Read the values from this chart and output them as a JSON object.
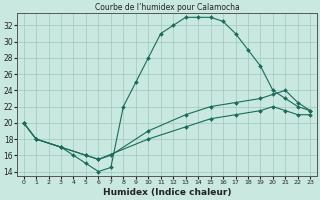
{
  "title": "Courbe de l’humidex pour Calamocha",
  "xlabel": "Humidex (Indice chaleur)",
  "xlim": [
    -0.5,
    23.5
  ],
  "ylim": [
    13.5,
    33.5
  ],
  "yticks": [
    14,
    16,
    18,
    20,
    22,
    24,
    26,
    28,
    30,
    32
  ],
  "xticks": [
    0,
    1,
    2,
    3,
    4,
    5,
    6,
    7,
    8,
    9,
    10,
    11,
    12,
    13,
    14,
    15,
    16,
    17,
    18,
    19,
    20,
    21,
    22,
    23
  ],
  "bg_color": "#c8e8e0",
  "line_color": "#1a6b5a",
  "grid_color": "#a0c8c0",
  "curves": [
    {
      "x": [
        0,
        1,
        3,
        4,
        5,
        6,
        7,
        8,
        9,
        10,
        11,
        12,
        13,
        14,
        15,
        16,
        17,
        18,
        19,
        20,
        21,
        22,
        23
      ],
      "y": [
        20,
        18,
        17,
        16,
        15,
        14,
        14.5,
        22,
        25,
        28,
        31,
        32,
        33,
        33,
        33,
        32.5,
        31,
        29,
        27,
        24,
        23,
        22,
        21.5
      ]
    },
    {
      "x": [
        0,
        1,
        3,
        5,
        6,
        7,
        10,
        13,
        15,
        17,
        19,
        20,
        21,
        22,
        23
      ],
      "y": [
        20,
        18,
        17,
        16,
        15.5,
        16,
        19,
        21,
        22,
        22.5,
        23,
        23.5,
        24,
        22.5,
        21.5
      ]
    },
    {
      "x": [
        0,
        1,
        3,
        5,
        6,
        10,
        13,
        15,
        17,
        19,
        20,
        21,
        22,
        23
      ],
      "y": [
        20,
        18,
        17,
        16,
        15.5,
        18,
        19.5,
        20.5,
        21,
        21.5,
        22,
        21.5,
        21,
        21
      ]
    }
  ]
}
